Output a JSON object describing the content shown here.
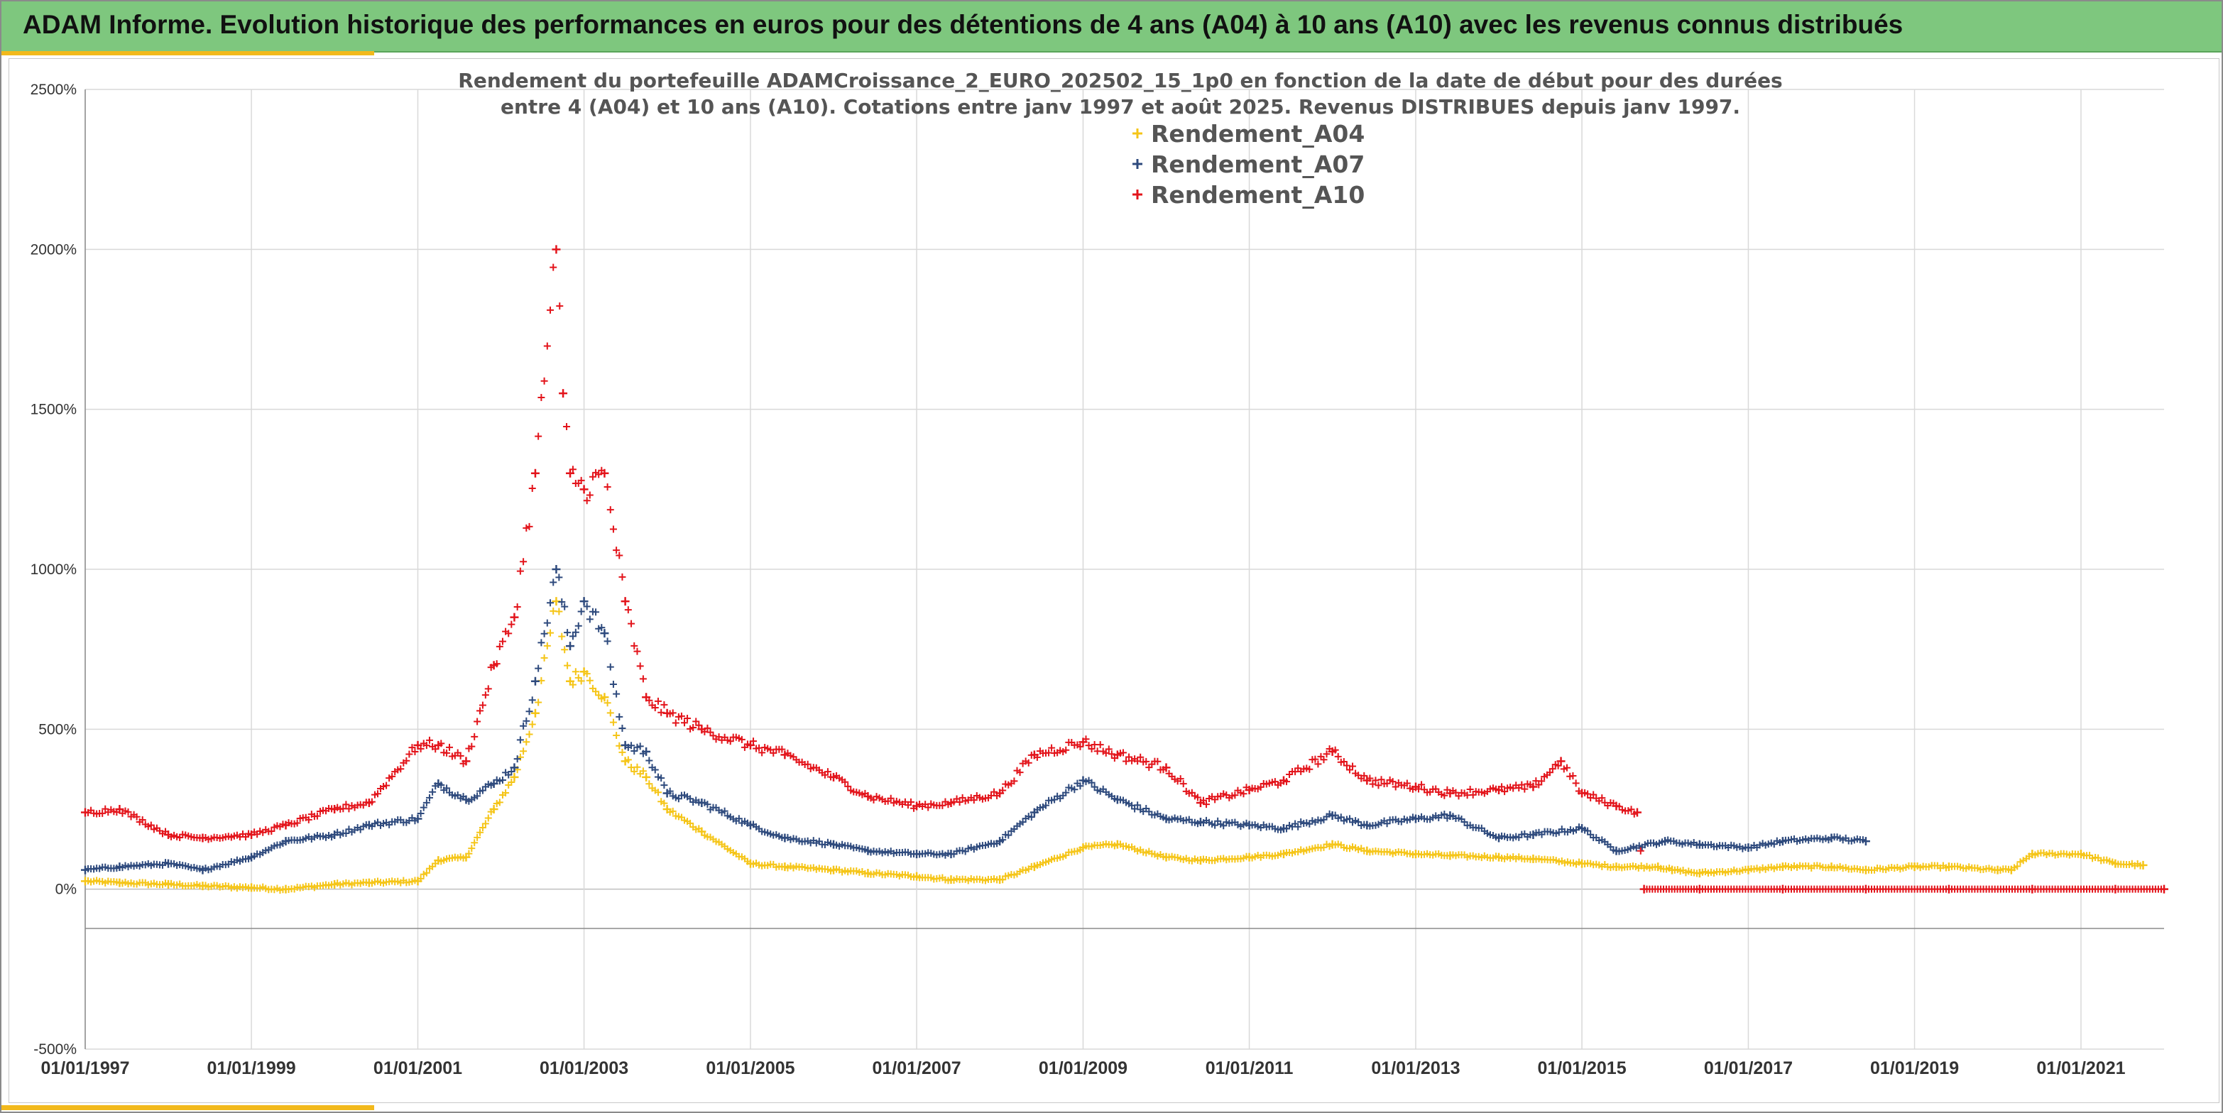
{
  "header": {
    "title": "ADAM Informe. Evolution historique des performances en euros pour des détentions de 4 ans (A04) à 10 ans (A10) avec les revenus connus distribués"
  },
  "colors": {
    "header_bg": "#7ec77e",
    "accent": "#f2b91c",
    "A04": "#f5c518",
    "A07": "#2e4a7d",
    "A10": "#e3141b",
    "grid": "#d9d9d9"
  },
  "chart_data": {
    "type": "scatter",
    "title": [
      "Rendement du portefeuille ADAMCroissance_2_EURO_202502_15_1p0  en fonction de la date de début pour des durées",
      "entre 4 (A04) et 10 ans (A10). Cotations entre janv 1997 et août 2025. Revenus DISTRIBUES depuis janv 1997."
    ],
    "xlabel": "",
    "ylabel": "",
    "x_ticks": [
      "01/01/1997",
      "01/01/1999",
      "01/01/2001",
      "01/01/2003",
      "01/01/2005",
      "01/01/2007",
      "01/01/2009",
      "01/01/2011",
      "01/01/2013",
      "01/01/2015",
      "01/01/2017",
      "01/01/2019",
      "01/01/2021"
    ],
    "y_ticks": [
      "2500%",
      "2000%",
      "1500%",
      "1000%",
      "500%",
      "0%",
      "-500%"
    ],
    "xlim": [
      "1997-01-01",
      "2022-01-01"
    ],
    "ylim": [
      -500,
      2500
    ],
    "grid": true,
    "legend_position": "top-right",
    "series": [
      {
        "name": "Rendement_A04",
        "color": "#f5c518",
        "marker": "+",
        "x": [
          "1997-01",
          "1997-06",
          "1998-01",
          "1998-06",
          "1999-01",
          "1999-06",
          "2000-01",
          "2000-06",
          "2001-01",
          "2001-04",
          "2001-08",
          "2001-12",
          "2002-03",
          "2002-06",
          "2002-09",
          "2002-11",
          "2003-01",
          "2003-04",
          "2003-07",
          "2003-10",
          "2004-01",
          "2004-06",
          "2005-01",
          "2005-06",
          "2006-01",
          "2006-06",
          "2007-01",
          "2007-06",
          "2008-01",
          "2008-06",
          "2009-01",
          "2009-06",
          "2010-01",
          "2010-06",
          "2011-01",
          "2011-06",
          "2012-01",
          "2012-06",
          "2013-01",
          "2013-06",
          "2014-01",
          "2014-06",
          "2015-01",
          "2015-06",
          "2015-12",
          "2016-02",
          "2016-06",
          "2017-01",
          "2017-06",
          "2018-01",
          "2018-06",
          "2019-01",
          "2019-06",
          "2020-01",
          "2020-03",
          "2020-06",
          "2021-01",
          "2021-06",
          "2021-10"
        ],
        "y": [
          25,
          20,
          15,
          10,
          5,
          0,
          15,
          20,
          25,
          90,
          100,
          250,
          350,
          550,
          900,
          650,
          680,
          600,
          400,
          350,
          250,
          180,
          80,
          70,
          60,
          50,
          40,
          30,
          30,
          70,
          130,
          140,
          100,
          90,
          100,
          110,
          140,
          120,
          110,
          105,
          100,
          95,
          80,
          70,
          70,
          60,
          50,
          60,
          70,
          70,
          60,
          70,
          70,
          60,
          60,
          110,
          110,
          80,
          75
        ]
      },
      {
        "name": "Rendement_A07",
        "color": "#2e4a7d",
        "marker": "+",
        "x": [
          "1997-01",
          "1997-06",
          "1998-01",
          "1998-06",
          "1999-01",
          "1999-06",
          "2000-01",
          "2000-06",
          "2001-01",
          "2001-04",
          "2001-08",
          "2001-12",
          "2002-03",
          "2002-06",
          "2002-09",
          "2002-11",
          "2003-01",
          "2003-04",
          "2003-07",
          "2003-10",
          "2004-01",
          "2004-06",
          "2005-01",
          "2005-06",
          "2006-01",
          "2006-06",
          "2007-01",
          "2007-06",
          "2008-01",
          "2008-06",
          "2009-01",
          "2009-06",
          "2010-01",
          "2010-06",
          "2011-01",
          "2011-06",
          "2012-01",
          "2012-06",
          "2013-01",
          "2013-06",
          "2014-01",
          "2014-06",
          "2015-01",
          "2015-06",
          "2016-01",
          "2016-06",
          "2017-01",
          "2017-06",
          "2018-01",
          "2018-06"
        ],
        "y": [
          60,
          70,
          80,
          60,
          100,
          150,
          170,
          200,
          220,
          330,
          280,
          330,
          380,
          650,
          1000,
          760,
          900,
          800,
          450,
          430,
          300,
          270,
          200,
          160,
          140,
          120,
          110,
          110,
          150,
          240,
          340,
          280,
          220,
          210,
          200,
          190,
          230,
          200,
          220,
          230,
          160,
          170,
          190,
          120,
          150,
          140,
          130,
          150,
          160,
          150
        ]
      },
      {
        "name": "Rendement_A10",
        "color": "#e3141b",
        "marker": "+",
        "x": [
          "1997-01",
          "1997-06",
          "1998-01",
          "1998-06",
          "1999-01",
          "1999-06",
          "2000-01",
          "2000-06",
          "2001-01",
          "2001-04",
          "2001-08",
          "2001-12",
          "2002-03",
          "2002-06",
          "2002-09",
          "2002-10",
          "2002-11",
          "2003-01",
          "2003-04",
          "2003-07",
          "2003-10",
          "2004-01",
          "2004-06",
          "2005-01",
          "2005-06",
          "2006-01",
          "2006-06",
          "2007-01",
          "2007-06",
          "2008-01",
          "2008-06",
          "2009-01",
          "2009-06",
          "2010-01",
          "2010-06",
          "2011-01",
          "2011-06",
          "2012-01",
          "2012-06",
          "2013-01",
          "2013-06",
          "2014-01",
          "2014-06",
          "2014-10",
          "2015-01",
          "2015-06",
          "2015-09",
          "2015-10",
          "2016-06",
          "2017-06",
          "2018-06",
          "2019-06",
          "2020-06",
          "2021-06",
          "2022-01"
        ],
        "y": [
          240,
          250,
          170,
          160,
          170,
          200,
          250,
          270,
          450,
          450,
          400,
          700,
          850,
          1300,
          2000,
          1550,
          1300,
          1250,
          1300,
          900,
          600,
          550,
          500,
          450,
          420,
          350,
          290,
          260,
          270,
          300,
          420,
          460,
          420,
          380,
          270,
          310,
          340,
          430,
          340,
          320,
          300,
          310,
          320,
          400,
          300,
          260,
          240,
          0,
          0,
          0,
          0,
          0,
          0,
          0,
          0
        ]
      }
    ]
  }
}
